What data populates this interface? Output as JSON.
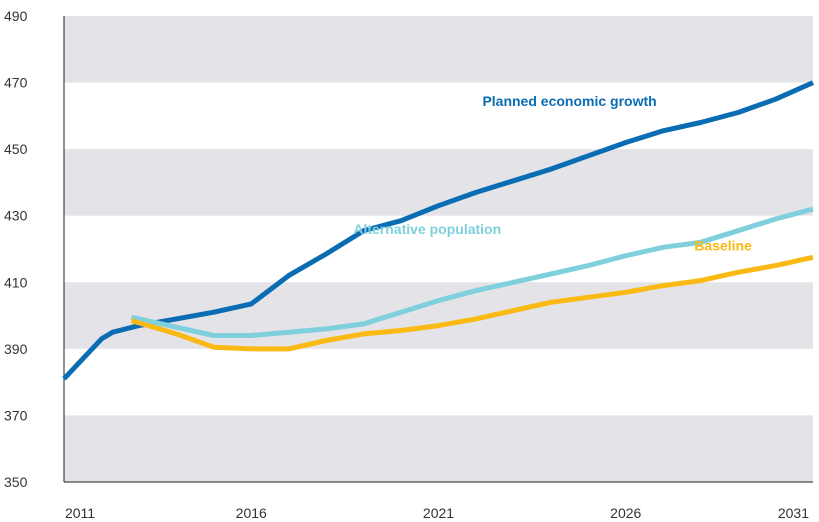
{
  "chart_data": {
    "type": "line",
    "title": "",
    "xlabel": "",
    "ylabel": "",
    "xlim": [
      2011,
      2031
    ],
    "ylim": [
      350,
      490
    ],
    "x_ticks": [
      "2011",
      "2016",
      "2021",
      "2026",
      "2031"
    ],
    "y_ticks": [
      "490",
      "470",
      "450",
      "430",
      "410",
      "390",
      "370",
      "350"
    ],
    "grid": "alternating horizontal bands",
    "band_color": "#e3e3e8",
    "series": [
      {
        "name": "Planned economic growth",
        "color": "#0a6db4",
        "x": [
          2011,
          2012,
          2012.3,
          2013,
          2014,
          2015,
          2016,
          2017,
          2018,
          2019,
          2020,
          2021,
          2022,
          2023,
          2024,
          2025,
          2026,
          2027,
          2028,
          2029,
          2030,
          2031
        ],
        "y": [
          381,
          393,
          395,
          397,
          399,
          401,
          403.5,
          412,
          418.5,
          425.5,
          428.5,
          433,
          437,
          440.5,
          444,
          448,
          452,
          455.5,
          458,
          461,
          465,
          470
        ]
      },
      {
        "name": "Alternative population",
        "color": "#7fd0dc",
        "x": [
          2012.8,
          2014,
          2015,
          2016,
          2017,
          2018,
          2019,
          2020,
          2021,
          2022,
          2023,
          2024,
          2025,
          2026,
          2027,
          2028,
          2029,
          2030,
          2031
        ],
        "y": [
          399.5,
          396.5,
          394,
          394,
          395,
          396,
          397.5,
          401,
          404.5,
          407.5,
          410,
          412.5,
          415,
          418,
          420.5,
          422,
          425.5,
          429,
          432
        ]
      },
      {
        "name": "Baseline",
        "color": "#fbb914",
        "x": [
          2012.8,
          2014,
          2015,
          2016,
          2017,
          2018,
          2019,
          2020,
          2021,
          2022,
          2023,
          2024,
          2025,
          2026,
          2027,
          2028,
          2029,
          2030,
          2031
        ],
        "y": [
          398.5,
          394.5,
          390.5,
          390,
          390,
          392.5,
          394.5,
          395.5,
          397,
          399,
          401.5,
          404,
          405.5,
          407,
          409,
          410.5,
          413,
          415,
          417.5
        ]
      }
    ],
    "labels": [
      {
        "series": 0,
        "text": "Planned economic growth",
        "at": [
          2024.5,
          463
        ]
      },
      {
        "series": 1,
        "text": "Alternative population",
        "at": [
          2020.7,
          424.5
        ]
      },
      {
        "series": 2,
        "text": "Baseline",
        "at": [
          2028.6,
          419.5
        ]
      }
    ]
  }
}
